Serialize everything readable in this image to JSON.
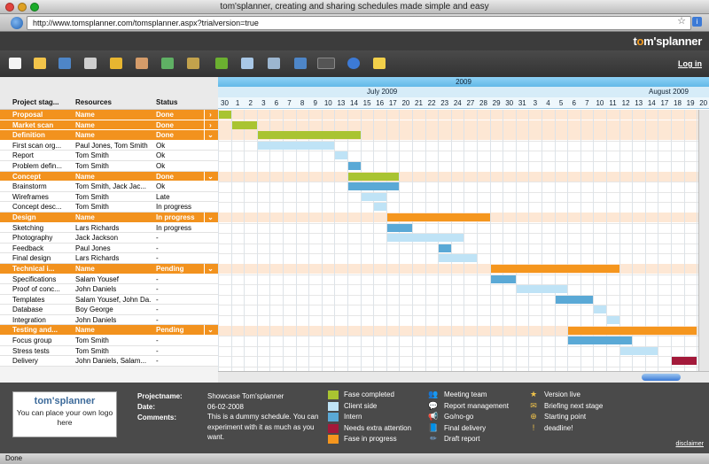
{
  "window": {
    "title": "tom'splanner, creating and sharing schedules made simple and easy",
    "url": "http://www.tomsplanner.com/tomsplanner.aspx?trialversion=true",
    "status": "Done"
  },
  "app": {
    "logo_prefix": "t",
    "logo_mid": "m's",
    "logo_suffix": "planner",
    "login": "Log in"
  },
  "toolbar": {
    "icons": [
      "new-icon",
      "open-folder-icon",
      "save-icon",
      "print-icon",
      "lock-icon",
      "share-users-icon",
      "export-icon",
      "import-icon",
      "undo-icon",
      "window-icon",
      "settings-icon",
      "warning-icon",
      "logo-icon",
      "help-icon",
      "note-icon"
    ]
  },
  "columns": {
    "c1": "Project stag...",
    "c2": "Resources",
    "c3": "Status"
  },
  "rows": [
    {
      "group": true,
      "name": "Proposal",
      "res": "Name",
      "status": "Done",
      "arrow": "›"
    },
    {
      "group": true,
      "name": "Market scan",
      "res": "Name",
      "status": "Done",
      "arrow": "›"
    },
    {
      "group": true,
      "name": "Definition",
      "res": "Name",
      "status": "Done",
      "arrow": "⌄"
    },
    {
      "group": false,
      "name": "First scan org...",
      "res": "Paul Jones, Tom Smith",
      "status": "Ok"
    },
    {
      "group": false,
      "name": "Report",
      "res": "Tom Smith",
      "status": "Ok"
    },
    {
      "group": false,
      "name": "Problem defin...",
      "res": "Tom Smith",
      "status": "Ok"
    },
    {
      "group": true,
      "name": "Concept",
      "res": "Name",
      "status": "Done",
      "arrow": "⌄"
    },
    {
      "group": false,
      "name": "Brainstorm",
      "res": "Tom Smith, Jack Jac...",
      "status": "Ok"
    },
    {
      "group": false,
      "name": "Wireframes",
      "res": "Tom Smith",
      "status": "Late"
    },
    {
      "group": false,
      "name": "Concept desc...",
      "res": "Tom Smith",
      "status": "In progress"
    },
    {
      "group": true,
      "name": "Design",
      "res": "Name",
      "status": "In progress",
      "arrow": "⌄"
    },
    {
      "group": false,
      "name": "Sketching",
      "res": "Lars Richards",
      "status": "In progress"
    },
    {
      "group": false,
      "name": "Photography",
      "res": "Jack Jackson",
      "status": "-"
    },
    {
      "group": false,
      "name": "Feedback",
      "res": "Paul Jones",
      "status": "-"
    },
    {
      "group": false,
      "name": "Final design",
      "res": "Lars Richards",
      "status": "-"
    },
    {
      "group": true,
      "name": "Technical i...",
      "res": "Name",
      "status": "Pending",
      "arrow": "⌄"
    },
    {
      "group": false,
      "name": "Specifications",
      "res": "Salam Yousef",
      "status": "-"
    },
    {
      "group": false,
      "name": "Proof of conc...",
      "res": "John Daniels",
      "status": "-"
    },
    {
      "group": false,
      "name": "Templates",
      "res": "Salam Yousef, John Da...",
      "status": "-"
    },
    {
      "group": false,
      "name": "Database",
      "res": "Boy George",
      "status": "-"
    },
    {
      "group": false,
      "name": "Integration",
      "res": "John Daniels",
      "status": "-"
    },
    {
      "group": true,
      "name": "Testing and...",
      "res": "Name",
      "status": "Pending",
      "arrow": "⌄"
    },
    {
      "group": false,
      "name": "Focus group",
      "res": "Tom Smith",
      "status": "-"
    },
    {
      "group": false,
      "name": "Stress tests",
      "res": "Tom Smith",
      "status": "-"
    },
    {
      "group": false,
      "name": "Delivery",
      "res": "John Daniels, Salam...",
      "status": "-"
    }
  ],
  "timeline": {
    "year": "2009",
    "months": [
      {
        "label": "July 2009"
      },
      {
        "label": "August 2009"
      }
    ],
    "days": [
      "30",
      "1",
      "2",
      "3",
      "6",
      "7",
      "8",
      "9",
      "10",
      "13",
      "14",
      "15",
      "16",
      "17",
      "20",
      "21",
      "22",
      "23",
      "24",
      "27",
      "28",
      "29",
      "30",
      "31",
      "3",
      "4",
      "5",
      "6",
      "7",
      "10",
      "11",
      "12",
      "13",
      "14",
      "17",
      "18",
      "19",
      "20"
    ]
  },
  "bars": [
    {
      "row": 0,
      "start": 0,
      "len": 1,
      "kind": "done"
    },
    {
      "row": 1,
      "start": 1,
      "len": 2,
      "kind": "done"
    },
    {
      "row": 2,
      "start": 3,
      "len": 8,
      "kind": "done"
    },
    {
      "row": 3,
      "start": 3,
      "len": 6,
      "kind": "client"
    },
    {
      "row": 4,
      "start": 9,
      "len": 1,
      "kind": "client"
    },
    {
      "row": 5,
      "start": 10,
      "len": 1,
      "kind": "intern"
    },
    {
      "row": 6,
      "start": 10,
      "len": 4,
      "kind": "done"
    },
    {
      "row": 7,
      "start": 10,
      "len": 4,
      "kind": "intern"
    },
    {
      "row": 8,
      "start": 11,
      "len": 2,
      "kind": "client"
    },
    {
      "row": 9,
      "start": 12,
      "len": 1,
      "kind": "client"
    },
    {
      "row": 10,
      "start": 13,
      "len": 8,
      "kind": "progress"
    },
    {
      "row": 11,
      "start": 13,
      "len": 2,
      "kind": "intern"
    },
    {
      "row": 12,
      "start": 13,
      "len": 6,
      "kind": "client"
    },
    {
      "row": 13,
      "start": 17,
      "len": 1,
      "kind": "intern"
    },
    {
      "row": 14,
      "start": 17,
      "len": 3,
      "kind": "client"
    },
    {
      "row": 15,
      "start": 21,
      "len": 10,
      "kind": "progress"
    },
    {
      "row": 16,
      "start": 21,
      "len": 2,
      "kind": "intern"
    },
    {
      "row": 17,
      "start": 23,
      "len": 4,
      "kind": "client"
    },
    {
      "row": 18,
      "start": 26,
      "len": 3,
      "kind": "intern"
    },
    {
      "row": 19,
      "start": 29,
      "len": 1,
      "kind": "client"
    },
    {
      "row": 20,
      "start": 30,
      "len": 1,
      "kind": "client"
    },
    {
      "row": 21,
      "start": 27,
      "len": 10,
      "kind": "progress"
    },
    {
      "row": 22,
      "start": 27,
      "len": 5,
      "kind": "intern"
    },
    {
      "row": 23,
      "start": 31,
      "len": 3,
      "kind": "client"
    },
    {
      "row": 24,
      "start": 35,
      "len": 2,
      "kind": "attention"
    }
  ],
  "colors": {
    "done": "#a9c431",
    "client": "#bfe3f6",
    "intern": "#5aa9d6",
    "attention": "#a3193a",
    "progress": "#f5961e",
    "group": "#f2921e"
  },
  "project": {
    "labels": {
      "name": "Projectname:",
      "date": "Date:",
      "comments": "Comments:"
    },
    "name": "Showcase Tom'splanner",
    "date": "06-02-2008",
    "comments": "This is a dummy schedule. You can experiment with it as much as you want."
  },
  "logobox": {
    "logo": "tom'splanner",
    "text": "You can place your own logo here"
  },
  "legend_colors": [
    {
      "label": "Fase completed",
      "color": "#a9c431"
    },
    {
      "label": "Client side",
      "color": "#bfe3f6"
    },
    {
      "label": "Intern",
      "color": "#5aa9d6"
    },
    {
      "label": "Needs extra attention",
      "color": "#a3193a"
    },
    {
      "label": "Fase in progress",
      "color": "#f5961e"
    }
  ],
  "legend_icons1": [
    {
      "label": "Meeting team",
      "icon": "meeting-icon",
      "glyph": "👥"
    },
    {
      "label": "Report management",
      "icon": "report-icon",
      "glyph": "💬"
    },
    {
      "label": "Go/no-go",
      "icon": "megaphone-icon",
      "glyph": "📢"
    },
    {
      "label": "Final delivery",
      "icon": "book-icon",
      "glyph": "📘"
    },
    {
      "label": "Draft report",
      "icon": "pencil-icon",
      "glyph": "✏"
    }
  ],
  "legend_icons2": [
    {
      "label": "Version live",
      "icon": "star-icon",
      "glyph": "★"
    },
    {
      "label": "Briefing next stage",
      "icon": "mail-icon",
      "glyph": "✉"
    },
    {
      "label": "Starting point",
      "icon": "plus-icon",
      "glyph": "⊕"
    },
    {
      "label": "deadline!",
      "icon": "alert-icon",
      "glyph": "!"
    }
  ],
  "disclaimer": "disclaimer"
}
